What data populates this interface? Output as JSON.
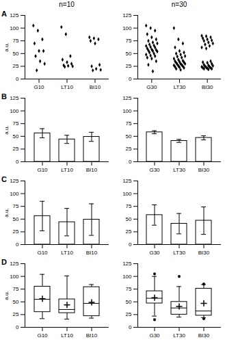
{
  "column_titles": [
    "n=10",
    "n=30"
  ],
  "panel_labels": [
    "A",
    "B",
    "C",
    "D"
  ],
  "chart_data": [
    {
      "type": "scatter",
      "ylabel": "a.u.",
      "categories": [
        "G10",
        "LT10",
        "BI10"
      ],
      "values": [
        [
          105,
          95,
          78,
          70,
          55,
          55,
          45,
          35,
          30,
          17
        ],
        [
          102,
          88,
          45,
          38,
          33,
          30,
          27,
          26,
          25,
          24
        ],
        [
          82,
          80,
          78,
          75,
          70,
          28,
          25,
          20,
          18,
          17
        ]
      ],
      "ylim": [
        0,
        125
      ],
      "yticks": [
        0,
        25,
        50,
        75,
        100,
        125
      ]
    },
    {
      "type": "scatter",
      "categories": [
        "G30",
        "LT30",
        "BI30"
      ],
      "values": [
        [
          105,
          100,
          95,
          88,
          82,
          78,
          75,
          72,
          70,
          68,
          66,
          65,
          63,
          62,
          60,
          58,
          57,
          56,
          55,
          54,
          52,
          50,
          48,
          46,
          45,
          42,
          40,
          35,
          28,
          15
        ],
        [
          100,
          78,
          70,
          62,
          55,
          52,
          50,
          48,
          45,
          44,
          42,
          40,
          38,
          36,
          35,
          34,
          33,
          32,
          30,
          30,
          29,
          28,
          27,
          26,
          25,
          24,
          23,
          22,
          20,
          18
        ],
        [
          85,
          84,
          82,
          80,
          78,
          76,
          75,
          72,
          70,
          68,
          65,
          62,
          60,
          35,
          33,
          32,
          30,
          28,
          27,
          26,
          25,
          24,
          24,
          23,
          22,
          22,
          21,
          20,
          20,
          19
        ]
      ],
      "ylim": [
        0,
        125
      ],
      "yticks": [
        0,
        25,
        50,
        75,
        100,
        125
      ]
    },
    {
      "type": "bar",
      "ylabel": "a.u.",
      "categories": [
        "G10",
        "LT10",
        "BI10"
      ],
      "values": [
        56,
        44,
        49
      ],
      "errors": [
        9,
        8,
        9
      ],
      "ylim": [
        0,
        125
      ],
      "yticks": [
        0,
        25,
        50,
        75,
        100,
        125
      ]
    },
    {
      "type": "bar",
      "categories": [
        "G30",
        "LT30",
        "BI30"
      ],
      "values": [
        58,
        41,
        47
      ],
      "errors": [
        3,
        3,
        4
      ],
      "ylim": [
        0,
        125
      ],
      "yticks": [
        0,
        25,
        50,
        75,
        100,
        125
      ]
    },
    {
      "type": "bar",
      "ylabel": "a.u.",
      "categories": [
        "G10",
        "LT10",
        "BI10"
      ],
      "values": [
        56,
        44,
        49
      ],
      "errors": [
        29,
        27,
        31
      ],
      "ylim": [
        0,
        125
      ],
      "yticks": [
        0,
        25,
        50,
        75,
        100,
        125
      ]
    },
    {
      "type": "bar",
      "categories": [
        "G30",
        "LT30",
        "BI30"
      ],
      "values": [
        58,
        41,
        47
      ],
      "errors": [
        20,
        20,
        27
      ],
      "ylim": [
        0,
        125
      ],
      "yticks": [
        0,
        25,
        50,
        75,
        100,
        125
      ]
    },
    {
      "type": "box",
      "ylabel": "a.u.",
      "categories": [
        "G10",
        "LT10",
        "BI10"
      ],
      "whisker_low": [
        17,
        16,
        18
      ],
      "q1": [
        30,
        28,
        22
      ],
      "median": [
        55,
        35,
        47
      ],
      "q3": [
        80,
        55,
        79
      ],
      "whisker_high": [
        104,
        101,
        84
      ],
      "mean": [
        56,
        44,
        49
      ],
      "outliers": [
        [],
        [],
        []
      ],
      "ylim": [
        0,
        125
      ],
      "yticks": [
        0,
        25,
        50,
        75,
        100,
        125
      ]
    },
    {
      "type": "box",
      "categories": [
        "G30",
        "LT30",
        "BI30"
      ],
      "whisker_low": [
        22,
        20,
        19
      ],
      "q1": [
        47,
        25,
        23
      ],
      "median": [
        57,
        38,
        32
      ],
      "q3": [
        71,
        50,
        76
      ],
      "whisker_high": [
        100,
        80,
        84
      ],
      "mean": [
        58,
        41,
        47
      ],
      "outliers": [
        [
          105,
          15
        ],
        [
          100
        ],
        [
          85,
          17
        ]
      ],
      "ylim": [
        0,
        125
      ],
      "yticks": [
        0,
        25,
        50,
        75,
        100,
        125
      ]
    }
  ]
}
